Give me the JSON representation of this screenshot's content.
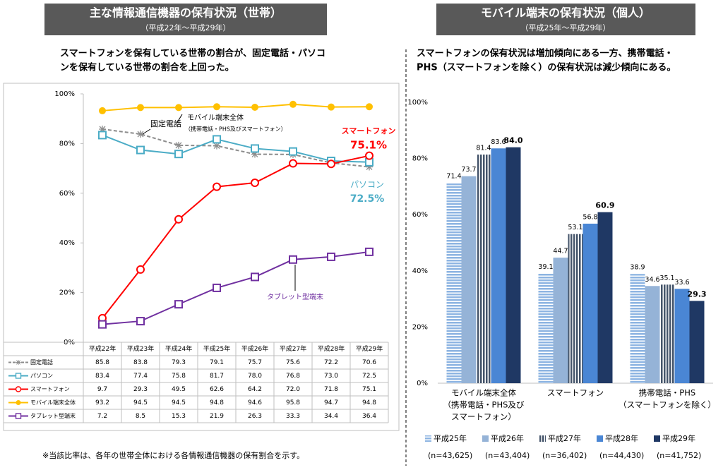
{
  "chart_data": [
    {
      "type": "line",
      "title": "主な情報通信機器の保有状況（世帯）",
      "subtitle": "（平成22年～平成29年）",
      "description": [
        "スマートフォンを保有している世帯の割合が、固定電話・パソコ",
        "ンを保有している世帯の割合を上回った。"
      ],
      "categories": [
        "平成22年",
        "平成23年",
        "平成24年",
        "平成25年",
        "平成26年",
        "平成27年",
        "平成28年",
        "平成29年"
      ],
      "ylim": [
        0,
        100
      ],
      "yticks": [
        {
          "value": 0,
          "label": "0%"
        },
        {
          "value": 20,
          "label": "20%"
        },
        {
          "value": 40,
          "label": "40%"
        },
        {
          "value": 60,
          "label": "60%"
        },
        {
          "value": 80,
          "label": "80%"
        },
        {
          "value": 100,
          "label": "100%"
        }
      ],
      "grid": false,
      "series": [
        {
          "name": "固定電話",
          "color": "#8c8c8c",
          "dash": true,
          "marker": "star",
          "values": [
            85.8,
            83.8,
            79.3,
            79.1,
            75.7,
            75.6,
            72.2,
            70.6
          ],
          "value_labels": [
            "85.8",
            "83.8",
            "79.3",
            "79.1",
            "75.7",
            "75.6",
            "72.2",
            "70.6"
          ]
        },
        {
          "name": "パソコン",
          "color": "#4bacc6",
          "dash": false,
          "marker": "square",
          "values": [
            83.4,
            77.4,
            75.8,
            81.7,
            78.0,
            76.8,
            73.0,
            72.5
          ],
          "value_labels": [
            "83.4",
            "77.4",
            "75.8",
            "81.7",
            "78.0",
            "76.8",
            "73.0",
            "72.5"
          ]
        },
        {
          "name": "スマートフォン",
          "color": "#ff0000",
          "dash": false,
          "marker": "circle",
          "values": [
            9.7,
            29.3,
            49.5,
            62.6,
            64.2,
            72.0,
            71.8,
            75.1
          ],
          "value_labels": [
            "9.7",
            "29.3",
            "49.5",
            "62.6",
            "64.2",
            "72.0",
            "71.8",
            "75.1"
          ]
        },
        {
          "name": "モバイル端末全体",
          "color": "#ffc000",
          "dash": false,
          "marker": "dot",
          "values": [
            93.2,
            94.5,
            94.5,
            94.8,
            94.6,
            95.8,
            94.7,
            94.8
          ],
          "value_labels": [
            "93.2",
            "94.5",
            "94.5",
            "94.8",
            "94.6",
            "95.8",
            "94.7",
            "94.8"
          ]
        },
        {
          "name": "タブレット型端末",
          "color": "#7030a0",
          "dash": false,
          "marker": "square",
          "values": [
            7.2,
            8.5,
            15.3,
            21.9,
            26.3,
            33.3,
            34.4,
            36.4
          ],
          "value_labels": [
            "7.2",
            "8.5",
            "15.3",
            "21.9",
            "26.3",
            "33.3",
            "34.4",
            "36.4"
          ]
        }
      ],
      "annotations": [
        "固定電話",
        "モバイル端末全体",
        "（携帯電話・PHS及びスマートフォン）",
        "スマートフォン",
        "75.1%",
        "パソコン",
        "72.5%",
        "タブレット型端末"
      ]
    },
    {
      "type": "bar",
      "title": "モバイル端末の保有状況（個人）",
      "subtitle": "（平成25年～平成29年）",
      "description": [
        "スマートフォンの保有状況は増加傾向にある一方、携帯電話・",
        "PHS（スマートフォンを除く）の保有状況は減少傾向にある。"
      ],
      "categories": [
        [
          "モバイル端末全体",
          "（携帯電話・PHS及び",
          "スマートフォン）"
        ],
        [
          "スマートフォン"
        ],
        [
          "携帯電話・PHS",
          "（スマートフォンを除く）"
        ]
      ],
      "ylim": [
        0,
        100
      ],
      "yticks": [
        {
          "value": 0,
          "label": "0%"
        },
        {
          "value": 20,
          "label": "20%"
        },
        {
          "value": 40,
          "label": "40%"
        },
        {
          "value": 60,
          "label": "60%"
        },
        {
          "value": 80,
          "label": "80%"
        },
        {
          "value": 100,
          "label": "100%"
        }
      ],
      "grid": false,
      "series": [
        {
          "name": "平成25年",
          "n_label": "(n=43,625)",
          "color": "#8db4e2",
          "pattern": "hstripe",
          "values": [
            71.4,
            39.1,
            38.9
          ],
          "value_labels": [
            "71.4",
            "39.1",
            "38.9"
          ]
        },
        {
          "name": "平成26年",
          "n_label": "(n=43,404)",
          "color": "#95b3d7",
          "pattern": "solid",
          "values": [
            73.7,
            44.7,
            34.6
          ],
          "value_labels": [
            "73.7",
            "44.7",
            "34.6"
          ]
        },
        {
          "name": "平成27年",
          "n_label": "(n=36,402)",
          "color": "#44546a",
          "pattern": "vstripe",
          "values": [
            81.4,
            53.1,
            35.1
          ],
          "value_labels": [
            "81.4",
            "53.1",
            "35.1"
          ]
        },
        {
          "name": "平成28年",
          "n_label": "(n=44,430)",
          "color": "#4a86d4",
          "pattern": "solid",
          "values": [
            83.6,
            56.8,
            33.6
          ],
          "value_labels": [
            "83.6",
            "56.8",
            "33.6"
          ]
        },
        {
          "name": "平成29年",
          "n_label": "(n=41,752)",
          "color": "#1f3864",
          "pattern": "solid",
          "bold": true,
          "values": [
            84.0,
            60.9,
            29.3
          ],
          "value_labels": [
            "84.0",
            "60.9",
            "29.3"
          ]
        }
      ]
    }
  ],
  "note": "※当該比率は、各年の世帯全体における各情報通信機器の保有割合を示す。"
}
